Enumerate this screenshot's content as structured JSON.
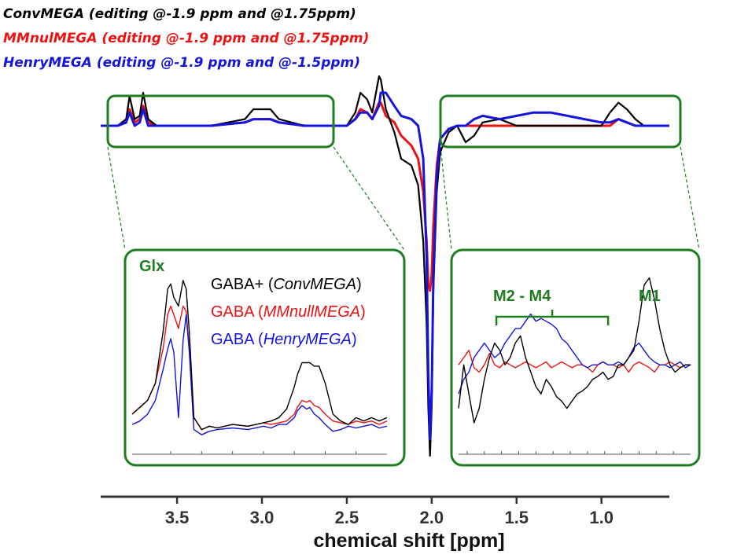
{
  "legend": {
    "conv": {
      "text": "ConvMEGA (editing @-1.9 ppm and @1.75ppm)",
      "color": "#000000"
    },
    "mmnull": {
      "text": "MMnulMEGA (editing @-1.9 ppm and @1.75ppm)",
      "color": "#ee1111"
    },
    "henry": {
      "text": "HenryMEGA (editing @-1.9 ppm and @-1.5ppm)",
      "color": "#1414dd"
    }
  },
  "colors": {
    "frame": "#1e7d1e",
    "conv": "#000000",
    "mmnull": "#ee1111",
    "henry": "#1414dd",
    "axis": "#333333"
  },
  "chart_data": {
    "type": "line",
    "title": "",
    "xlabel": "chemical shift [ppm]",
    "x_reversed": true,
    "xlim": [
      3.95,
      0.6
    ],
    "xticks": [
      3.5,
      3.0,
      2.5,
      2.0,
      1.5,
      1.0
    ],
    "xtick_labels": [
      "3.5",
      "3.0",
      "2.5",
      "2.0",
      "1.5",
      "1.0"
    ],
    "ylim": [
      -1.0,
      0.3
    ],
    "series": [
      {
        "name": "ConvMEGA",
        "key": "conv",
        "x": [
          3.95,
          3.85,
          3.8,
          3.78,
          3.75,
          3.72,
          3.7,
          3.67,
          3.62,
          3.5,
          3.3,
          3.1,
          3.05,
          2.95,
          2.9,
          2.75,
          2.6,
          2.5,
          2.45,
          2.42,
          2.38,
          2.35,
          2.31,
          2.3,
          2.27,
          2.22,
          2.18,
          2.12,
          2.08,
          2.05,
          2.03,
          2.02,
          2.01,
          2.0,
          1.99,
          1.97,
          1.95,
          1.9,
          1.85,
          1.8,
          1.75,
          1.7,
          1.6,
          1.5,
          1.4,
          1.3,
          1.2,
          1.1,
          1.0,
          0.95,
          0.9,
          0.85,
          0.8,
          0.75,
          0.7,
          0.6
        ],
        "y": [
          0.0,
          0.0,
          0.02,
          0.09,
          0.02,
          0.03,
          0.1,
          0.02,
          0.0,
          0.0,
          0.0,
          0.02,
          0.05,
          0.05,
          0.02,
          0.0,
          0.0,
          0.0,
          0.04,
          0.1,
          0.08,
          0.04,
          0.15,
          0.14,
          0.05,
          -0.02,
          -0.1,
          -0.12,
          -0.18,
          -0.35,
          -0.6,
          -0.85,
          -1.0,
          -0.85,
          -0.5,
          -0.2,
          -0.08,
          -0.02,
          0.0,
          -0.05,
          -0.03,
          0.01,
          0.02,
          0.0,
          0.0,
          0.0,
          0.0,
          0.0,
          0.0,
          0.04,
          0.07,
          0.05,
          0.02,
          0.0,
          0.0,
          0.0
        ]
      },
      {
        "name": "MMnulMEGA",
        "key": "mmnull",
        "x": [
          3.95,
          3.85,
          3.8,
          3.78,
          3.75,
          3.72,
          3.7,
          3.67,
          3.62,
          3.5,
          3.3,
          3.1,
          3.05,
          2.95,
          2.9,
          2.75,
          2.6,
          2.5,
          2.45,
          2.42,
          2.38,
          2.35,
          2.31,
          2.3,
          2.27,
          2.22,
          2.18,
          2.12,
          2.08,
          2.05,
          2.03,
          2.02,
          2.01,
          2.0,
          1.99,
          1.97,
          1.95,
          1.9,
          1.85,
          1.8,
          1.75,
          1.7,
          1.6,
          1.5,
          1.4,
          1.3,
          1.2,
          1.1,
          1.0,
          0.95,
          0.9,
          0.85,
          0.8,
          0.75,
          0.7,
          0.6
        ],
        "y": [
          0.0,
          0.0,
          0.01,
          0.05,
          0.01,
          0.02,
          0.06,
          0.01,
          0.0,
          0.0,
          0.0,
          0.01,
          0.02,
          0.02,
          0.01,
          0.0,
          0.0,
          0.0,
          0.02,
          0.05,
          0.04,
          0.02,
          0.07,
          0.07,
          0.03,
          0.01,
          -0.03,
          -0.06,
          -0.1,
          -0.2,
          -0.35,
          -0.48,
          -0.5,
          -0.45,
          -0.3,
          -0.12,
          -0.04,
          -0.01,
          0.0,
          0.0,
          0.0,
          0.0,
          0.0,
          0.0,
          0.0,
          0.0,
          0.0,
          0.0,
          0.0,
          0.0,
          0.02,
          0.01,
          0.0,
          0.0,
          0.0,
          0.0
        ]
      },
      {
        "name": "HenryMEGA",
        "key": "henry",
        "x": [
          3.95,
          3.85,
          3.8,
          3.78,
          3.75,
          3.72,
          3.7,
          3.67,
          3.62,
          3.5,
          3.3,
          3.1,
          3.05,
          2.95,
          2.9,
          2.75,
          2.6,
          2.5,
          2.45,
          2.42,
          2.38,
          2.35,
          2.31,
          2.3,
          2.27,
          2.22,
          2.18,
          2.12,
          2.08,
          2.05,
          2.03,
          2.02,
          2.01,
          2.0,
          1.99,
          1.97,
          1.95,
          1.9,
          1.85,
          1.8,
          1.75,
          1.7,
          1.6,
          1.5,
          1.4,
          1.3,
          1.2,
          1.1,
          1.0,
          0.95,
          0.9,
          0.85,
          0.8,
          0.75,
          0.7,
          0.6
        ],
        "y": [
          0.0,
          0.0,
          0.01,
          0.04,
          0.0,
          0.01,
          0.05,
          0.0,
          0.0,
          0.0,
          0.0,
          0.01,
          0.02,
          0.02,
          0.01,
          0.0,
          0.0,
          0.0,
          0.02,
          0.04,
          0.04,
          0.02,
          0.06,
          0.1,
          0.1,
          0.06,
          0.03,
          0.02,
          0.0,
          -0.1,
          -0.4,
          -0.75,
          -0.95,
          -0.8,
          -0.45,
          -0.15,
          -0.04,
          -0.01,
          0.0,
          0.0,
          0.02,
          0.03,
          0.02,
          0.03,
          0.04,
          0.04,
          0.03,
          0.02,
          0.01,
          0.01,
          0.02,
          0.01,
          0.0,
          0.0,
          0.0,
          0.0
        ]
      }
    ],
    "insets": [
      {
        "id": "left",
        "xlim": [
          3.85,
          2.2
        ],
        "xticks": [
          3.6,
          3.4,
          3.2,
          3.0,
          2.8,
          2.6,
          2.4
        ],
        "ylim": [
          -0.1,
          1.0
        ],
        "labels": {
          "glx": "Glx",
          "gaba_conv_prefix": "GABA+ (",
          "gaba_conv_name": "ConvMEGA",
          "gaba_mmnull_prefix": "GABA (",
          "gaba_mmnull_name": "MMnullMEGA",
          "gaba_henry_prefix": "GABA (",
          "gaba_henry_name": "HenryMEGA",
          "close": ")"
        },
        "x": [
          3.85,
          3.8,
          3.75,
          3.7,
          3.65,
          3.62,
          3.6,
          3.58,
          3.55,
          3.52,
          3.5,
          3.48,
          3.45,
          3.4,
          3.35,
          3.3,
          3.2,
          3.1,
          3.0,
          2.95,
          2.9,
          2.85,
          2.8,
          2.78,
          2.75,
          2.72,
          2.7,
          2.67,
          2.64,
          2.6,
          2.55,
          2.5,
          2.45,
          2.4,
          2.35,
          2.3,
          2.25,
          2.2
        ],
        "conv": [
          0.12,
          0.16,
          0.2,
          0.3,
          0.6,
          0.85,
          0.88,
          0.8,
          0.75,
          0.9,
          0.85,
          0.6,
          0.1,
          0.03,
          0.05,
          0.04,
          0.06,
          0.05,
          0.07,
          0.08,
          0.1,
          0.15,
          0.28,
          0.35,
          0.42,
          0.42,
          0.42,
          0.4,
          0.4,
          0.3,
          0.12,
          0.08,
          0.06,
          0.1,
          0.08,
          0.1,
          0.08,
          0.1
        ],
        "mmnull": [
          0.12,
          0.16,
          0.2,
          0.3,
          0.5,
          0.7,
          0.75,
          0.7,
          0.62,
          0.75,
          0.72,
          0.5,
          0.1,
          0.03,
          0.05,
          0.04,
          0.06,
          0.05,
          0.07,
          0.06,
          0.07,
          0.08,
          0.12,
          0.16,
          0.2,
          0.19,
          0.2,
          0.17,
          0.16,
          0.12,
          0.08,
          0.07,
          0.06,
          0.08,
          0.07,
          0.08,
          0.06,
          0.08
        ],
        "henry": [
          0.06,
          0.08,
          0.12,
          0.2,
          0.38,
          0.5,
          0.56,
          0.48,
          0.1,
          0.55,
          0.7,
          0.48,
          0.03,
          0.0,
          0.02,
          0.03,
          0.04,
          0.03,
          0.05,
          0.04,
          0.06,
          0.06,
          0.1,
          0.14,
          0.17,
          0.15,
          0.16,
          0.12,
          0.1,
          0.06,
          0.02,
          0.03,
          0.05,
          0.04,
          0.05,
          0.06,
          0.04,
          0.05
        ]
      },
      {
        "id": "right",
        "xlim": [
          1.95,
          0.6
        ],
        "xticks": [
          1.9,
          1.8,
          1.7,
          1.6,
          1.5,
          1.4,
          1.3,
          1.2,
          1.1,
          1.0,
          0.9,
          0.8,
          0.7
        ],
        "ylim": [
          -0.3,
          1.0
        ],
        "labels": {
          "m2m4": "M2 - M4",
          "m1": "M1"
        },
        "bracket": [
          1.73,
          1.08
        ],
        "x": [
          1.95,
          1.92,
          1.89,
          1.86,
          1.83,
          1.8,
          1.77,
          1.74,
          1.71,
          1.68,
          1.65,
          1.62,
          1.59,
          1.56,
          1.53,
          1.5,
          1.47,
          1.44,
          1.41,
          1.38,
          1.35,
          1.32,
          1.29,
          1.26,
          1.23,
          1.2,
          1.17,
          1.14,
          1.11,
          1.08,
          1.05,
          1.02,
          0.99,
          0.96,
          0.93,
          0.9,
          0.87,
          0.84,
          0.81,
          0.78,
          0.75,
          0.72,
          0.69,
          0.66,
          0.63,
          0.6
        ],
        "conv": [
          0.0,
          0.3,
          0.1,
          -0.1,
          0.0,
          0.2,
          0.35,
          0.45,
          0.4,
          0.3,
          0.35,
          0.45,
          0.5,
          0.35,
          0.25,
          0.15,
          0.1,
          0.2,
          0.15,
          0.08,
          0.05,
          0.0,
          0.05,
          0.1,
          0.12,
          0.15,
          0.2,
          0.22,
          0.25,
          0.2,
          0.22,
          0.3,
          0.3,
          0.35,
          0.4,
          0.6,
          0.85,
          0.9,
          0.75,
          0.55,
          0.4,
          0.3,
          0.25,
          0.28,
          0.3,
          0.3
        ],
        "mmnull": [
          0.3,
          0.35,
          0.4,
          0.28,
          0.25,
          0.3,
          0.38,
          0.3,
          0.28,
          0.32,
          0.3,
          0.28,
          0.3,
          0.32,
          0.3,
          0.28,
          0.3,
          0.32,
          0.28,
          0.3,
          0.32,
          0.3,
          0.28,
          0.3,
          0.3,
          0.28,
          0.25,
          0.3,
          0.32,
          0.3,
          0.3,
          0.28,
          0.3,
          0.25,
          0.3,
          0.32,
          0.3,
          0.28,
          0.25,
          0.3,
          0.3,
          0.32,
          0.3,
          0.28,
          0.3,
          0.3
        ],
        "henry": [
          0.1,
          0.2,
          0.25,
          0.35,
          0.4,
          0.45,
          0.4,
          0.35,
          0.38,
          0.45,
          0.5,
          0.55,
          0.55,
          0.6,
          0.65,
          0.6,
          0.62,
          0.6,
          0.58,
          0.55,
          0.48,
          0.45,
          0.4,
          0.35,
          0.3,
          0.28,
          0.3,
          0.3,
          0.32,
          0.3,
          0.3,
          0.32,
          0.3,
          0.35,
          0.42,
          0.45,
          0.4,
          0.35,
          0.32,
          0.3,
          0.3,
          0.28,
          0.3,
          0.32,
          0.28,
          0.3
        ]
      }
    ]
  }
}
